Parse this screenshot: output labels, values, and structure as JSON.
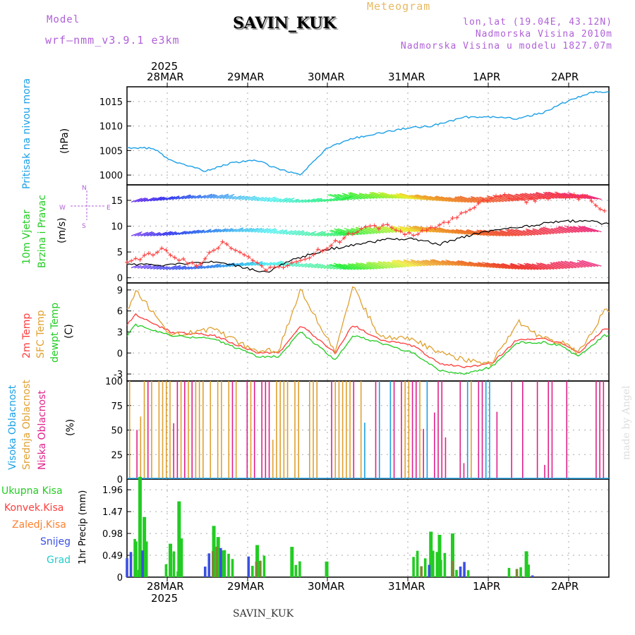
{
  "header": {
    "model_label": "Model",
    "model_name": "wrf—nmm_v3.9.1  e3km",
    "station": "SAVIN_KUK",
    "product": "Meteogram",
    "lonlat": "lon,lat (19.04E, 43.12N)",
    "elevation": "Nadmorska Visina 2010m",
    "model_elevation": "Nadmorska Visina u modelu 1827.07m",
    "footer_station": "SAVIN_KUK",
    "credit": "made by Angel",
    "year": "2025"
  },
  "colors": {
    "purple": "#b060d8",
    "pressure": "#1ca0e6",
    "wind_label": "#22cc22",
    "temp": "#ff3b3b",
    "sfc": "#e0a030",
    "dewp": "#22cc22",
    "high_cloud": "#1ca0e6",
    "mid_cloud": "#e0a030",
    "low_cloud": "#e0208a",
    "total_precip": "#22cc22",
    "conv_precip": "#ff3b3b",
    "freezing": "#ff8030",
    "snow": "#3a50e0",
    "hail": "#22cccc",
    "gust": "#ff3b3b",
    "wind_speed": "#000000"
  },
  "axis": {
    "top_dates": [
      "28MAR",
      "29MAR",
      "30MAR",
      "31MAR",
      "1APR",
      "2APR"
    ],
    "bottom_dates": [
      "28MAR",
      "29MAR",
      "30MAR",
      "31MAR",
      "1APR",
      "2APR"
    ]
  },
  "panels": {
    "pressure": {
      "title": "Pritisak na nivou mora",
      "unit": "(hPa)"
    },
    "wind": {
      "title_1": "10m Vjetar",
      "title_2": "Brzina i Pravac",
      "unit": "(m/s)",
      "compass_n": "N",
      "compass_s": "S",
      "compass_e": "E",
      "compass_w": "W"
    },
    "temp": {
      "title_1": "2m Temp",
      "title_2": "SFC Temp",
      "title_3": "dewpt Temp",
      "unit": "(C)"
    },
    "cloud": {
      "title_1": "Visoka Oblacnost",
      "title_2": "Srednja Oblacnost",
      "title_3": "Niska Oblacnost",
      "unit": "(%)"
    },
    "precip": {
      "title": "1hr Precip (mm)",
      "legend": [
        "Ukupna Kisa",
        "Konvek.Kisa",
        "Zaledj.Kisa",
        "Snijeg",
        "Grad"
      ]
    }
  },
  "chart_data": [
    {
      "type": "line",
      "title": "Pritisak na nivou mora",
      "ylabel": "(hPa)",
      "ylim": [
        998,
        1018
      ],
      "yticks": [
        "1000",
        "1005",
        "1010",
        "1015"
      ],
      "x_days": [
        0,
        0.3,
        0.5,
        0.9,
        1.2,
        1.5,
        1.7,
        2.0,
        2.3,
        2.6,
        2.9,
        3.2,
        3.5,
        3.9,
        4.2,
        4.5,
        4.8,
        5.0,
        5.3,
        5.4,
        5.5
      ],
      "series": [
        {
          "name": "SLP",
          "values": [
            1005.5,
            1005.5,
            1003,
            1000.8,
            1002.5,
            1003,
            1001.5,
            1000,
            1005.5,
            1007.5,
            1008.5,
            1009.5,
            1010,
            1011.8,
            1011.8,
            1011.5,
            1012.8,
            1014.5,
            1016.5,
            1017,
            1017
          ]
        }
      ]
    },
    {
      "type": "line",
      "title": "10m Vjetar Brzina i Pravac",
      "ylabel": "(m/s)",
      "ylim": [
        -1,
        18
      ],
      "yticks": [
        "0",
        "5",
        "10",
        "15"
      ],
      "barb_rows": [
        2,
        8.5,
        15
      ],
      "x_days": [
        0,
        0.4,
        0.8,
        1.1,
        1.6,
        1.9,
        2.3,
        2.7,
        3.0,
        3.3,
        3.6,
        4.0,
        4.3,
        4.6,
        5.0,
        5.3,
        5.5
      ],
      "series": [
        {
          "name": "Brzina",
          "values": [
            2.5,
            2.5,
            3,
            3,
            1,
            3.5,
            5.5,
            6.5,
            7.5,
            7.5,
            6.5,
            8.5,
            9.5,
            10,
            11,
            11,
            10.5
          ]
        },
        {
          "name": "Udari",
          "values": [
            3,
            5.5,
            2,
            7,
            1.5,
            2.5,
            6,
            9.5,
            10,
            8,
            10,
            14,
            16,
            15,
            16,
            15.5,
            13
          ]
        }
      ]
    },
    {
      "type": "line",
      "title": "2m Temp / SFC Temp / dewpt Temp",
      "ylabel": "(C)",
      "ylim": [
        -4,
        10
      ],
      "yticks": [
        "-3",
        "0",
        "3",
        "6",
        "9"
      ],
      "x_days": [
        0,
        0.1,
        0.5,
        1.0,
        1.5,
        1.75,
        2.0,
        2.4,
        2.6,
        2.9,
        3.3,
        3.6,
        3.9,
        4.2,
        4.5,
        4.8,
        5.0,
        5.2,
        5.5
      ],
      "series": [
        {
          "name": "2m Temp",
          "values": [
            4,
            5.5,
            3,
            2.5,
            0,
            0,
            4,
            0,
            4,
            2,
            1,
            -1.5,
            -2,
            -1.5,
            2,
            2,
            1.5,
            0,
            3.5
          ]
        },
        {
          "name": "SFC Temp",
          "values": [
            6,
            9,
            2.5,
            3.5,
            0,
            0.5,
            9,
            0,
            9.5,
            2.5,
            2,
            0,
            -1,
            -1.5,
            4.5,
            2,
            1.5,
            0,
            6
          ]
        },
        {
          "name": "dewpt Temp",
          "values": [
            2.5,
            4,
            2.5,
            2,
            -0.5,
            -0.5,
            3,
            -1,
            2.5,
            1.5,
            0,
            -2.5,
            -3,
            -2,
            1.5,
            1.5,
            1,
            -0.5,
            2.5
          ]
        }
      ]
    },
    {
      "type": "bar",
      "title": "Visoka / Srednja / Niska Oblacnost",
      "ylabel": "(%)",
      "ylim": [
        0,
        100
      ],
      "yticks": [
        "0",
        "25",
        "50",
        "75",
        "100"
      ],
      "series": [
        {
          "name": "Visoka Oblacnost",
          "coverage": "sparse"
        },
        {
          "name": "Srednja Oblacnost",
          "coverage": "frequent 100% until 31MAR"
        },
        {
          "name": "Niska Oblacnost",
          "coverage": "frequent 100%"
        }
      ]
    },
    {
      "type": "bar",
      "title": "1hr Precip (mm)",
      "ylabel": "1hr Precip (mm)",
      "ylim": [
        0,
        2.2
      ],
      "yticks": [
        "0",
        "0.49",
        "0.98",
        "1.47",
        "1.96"
      ],
      "x_days": [
        0.1,
        0.15,
        0.2,
        0.5,
        0.6,
        1.0,
        1.05,
        1.1,
        1.5,
        1.9,
        2.3,
        3.5,
        3.6,
        3.75,
        4.6
      ],
      "series": [
        {
          "name": "Ukupna Kisa",
          "values": [
            0.8,
            2.25,
            1.35,
            0.75,
            1.7,
            1.15,
            0.9,
            0.6,
            0.72,
            0.68,
            0.35,
            1.02,
            0.95,
            0.98,
            0.58
          ]
        }
      ]
    }
  ]
}
